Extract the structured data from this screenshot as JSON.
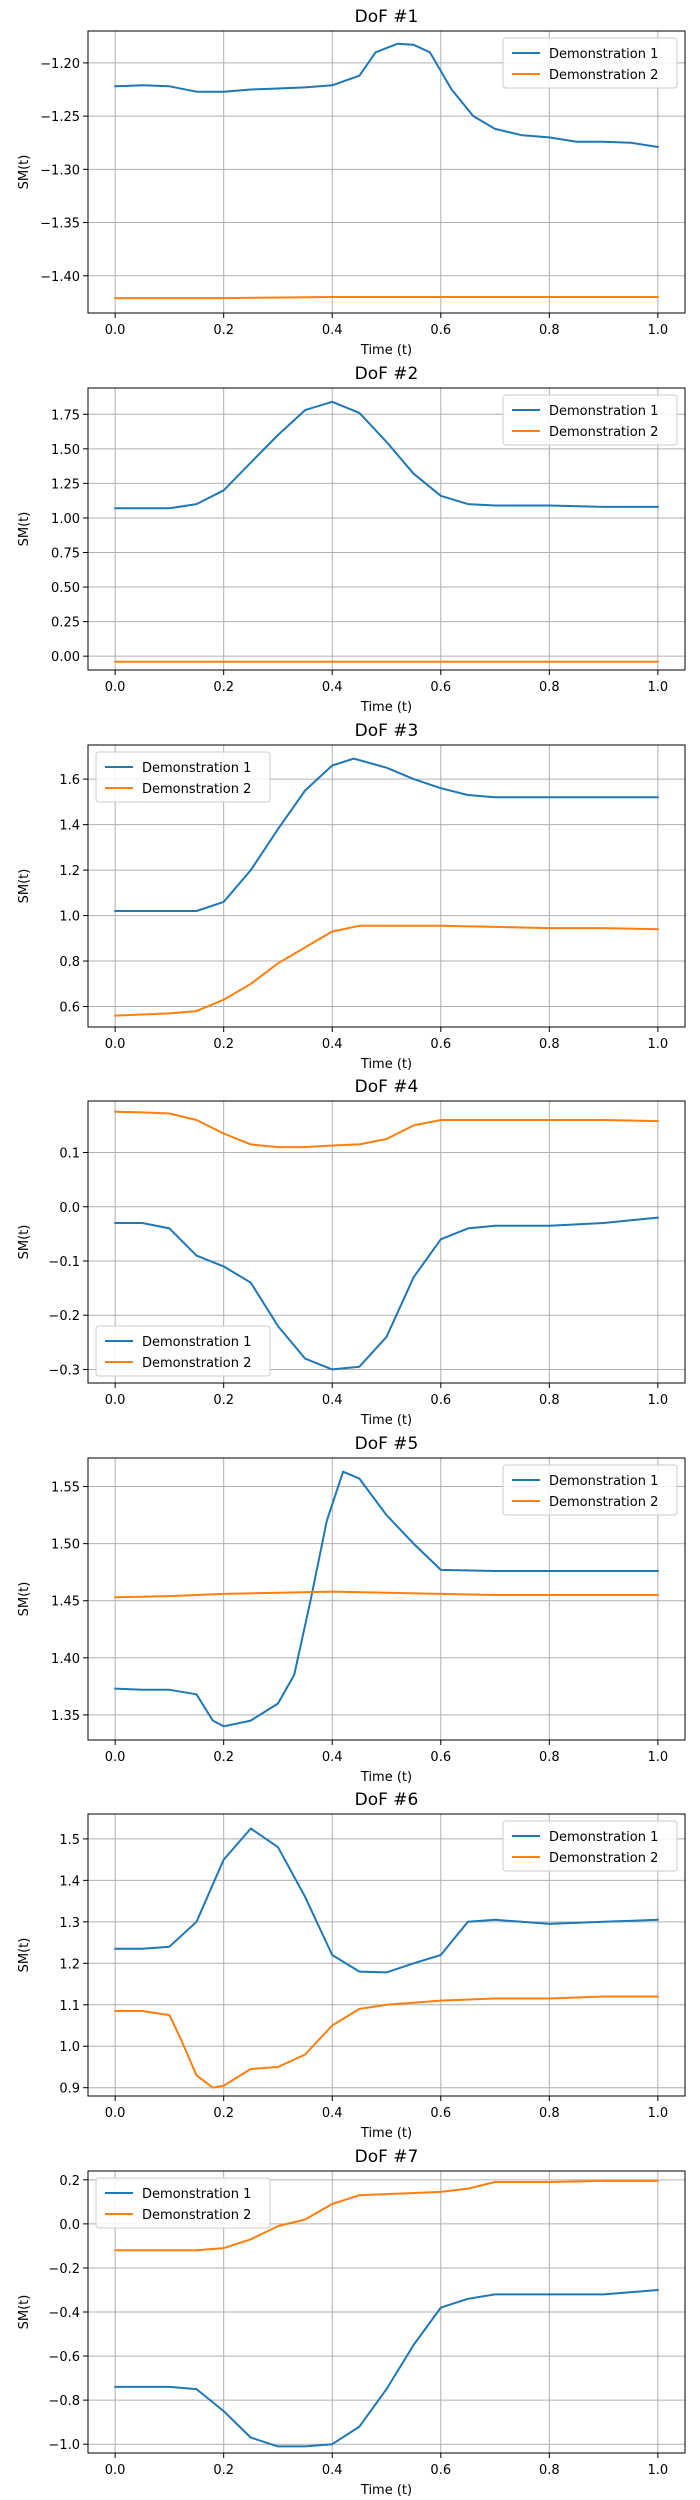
{
  "colors": {
    "series1": "#1f77b4",
    "series2": "#ff7f0e"
  },
  "chart_data": [
    {
      "type": "line",
      "title": "DoF #1",
      "xlabel": "Time (t)",
      "ylabel": "SM(t)",
      "xlim": [
        -0.05,
        1.05
      ],
      "ylim": [
        -1.435,
        -1.17
      ],
      "xticks": [
        0.0,
        0.2,
        0.4,
        0.6,
        0.8,
        1.0
      ],
      "xtick_labels": [
        "0.0",
        "0.2",
        "0.4",
        "0.6",
        "0.8",
        "1.0"
      ],
      "yticks": [
        -1.4,
        -1.35,
        -1.3,
        -1.25,
        -1.2
      ],
      "ytick_labels": [
        "−1.40",
        "−1.35",
        "−1.30",
        "−1.25",
        "−1.20"
      ],
      "grid": true,
      "legend": "top-right",
      "series": [
        {
          "name": "Demonstration 1",
          "x": [
            0,
            0.05,
            0.1,
            0.15,
            0.2,
            0.25,
            0.3,
            0.35,
            0.4,
            0.45,
            0.48,
            0.52,
            0.55,
            0.58,
            0.62,
            0.66,
            0.7,
            0.75,
            0.8,
            0.85,
            0.9,
            0.95,
            1.0
          ],
          "y": [
            -1.222,
            -1.221,
            -1.222,
            -1.227,
            -1.227,
            -1.225,
            -1.224,
            -1.223,
            -1.221,
            -1.212,
            -1.19,
            -1.182,
            -1.183,
            -1.19,
            -1.225,
            -1.25,
            -1.262,
            -1.268,
            -1.27,
            -1.274,
            -1.274,
            -1.275,
            -1.279
          ]
        },
        {
          "name": "Demonstration 2",
          "x": [
            0,
            0.2,
            0.4,
            0.6,
            0.8,
            1.0
          ],
          "y": [
            -1.421,
            -1.421,
            -1.42,
            -1.42,
            -1.42,
            -1.42
          ]
        }
      ]
    },
    {
      "type": "line",
      "title": "DoF #2",
      "xlabel": "Time (t)",
      "ylabel": "SM(t)",
      "xlim": [
        -0.05,
        1.05
      ],
      "ylim": [
        -0.1,
        1.94
      ],
      "xticks": [
        0.0,
        0.2,
        0.4,
        0.6,
        0.8,
        1.0
      ],
      "xtick_labels": [
        "0.0",
        "0.2",
        "0.4",
        "0.6",
        "0.8",
        "1.0"
      ],
      "yticks": [
        0.0,
        0.25,
        0.5,
        0.75,
        1.0,
        1.25,
        1.5,
        1.75
      ],
      "ytick_labels": [
        "0.00",
        "0.25",
        "0.50",
        "0.75",
        "1.00",
        "1.25",
        "1.50",
        "1.75"
      ],
      "grid": true,
      "legend": "top-right",
      "series": [
        {
          "name": "Demonstration 1",
          "x": [
            0,
            0.05,
            0.1,
            0.15,
            0.2,
            0.25,
            0.3,
            0.35,
            0.4,
            0.45,
            0.5,
            0.55,
            0.6,
            0.65,
            0.7,
            0.8,
            0.9,
            1.0
          ],
          "y": [
            1.07,
            1.07,
            1.07,
            1.1,
            1.2,
            1.4,
            1.6,
            1.78,
            1.84,
            1.76,
            1.55,
            1.32,
            1.16,
            1.1,
            1.09,
            1.09,
            1.08,
            1.08
          ]
        },
        {
          "name": "Demonstration 2",
          "x": [
            0,
            0.2,
            0.4,
            0.6,
            0.8,
            1.0
          ],
          "y": [
            -0.04,
            -0.04,
            -0.04,
            -0.04,
            -0.04,
            -0.04
          ]
        }
      ]
    },
    {
      "type": "line",
      "title": "DoF #3",
      "xlabel": "Time (t)",
      "ylabel": "SM(t)",
      "xlim": [
        -0.05,
        1.05
      ],
      "ylim": [
        0.51,
        1.75
      ],
      "xticks": [
        0.0,
        0.2,
        0.4,
        0.6,
        0.8,
        1.0
      ],
      "xtick_labels": [
        "0.0",
        "0.2",
        "0.4",
        "0.6",
        "0.8",
        "1.0"
      ],
      "yticks": [
        0.6,
        0.8,
        1.0,
        1.2,
        1.4,
        1.6
      ],
      "ytick_labels": [
        "0.6",
        "0.8",
        "1.0",
        "1.2",
        "1.4",
        "1.6"
      ],
      "grid": true,
      "legend": "top-left",
      "series": [
        {
          "name": "Demonstration 1",
          "x": [
            0,
            0.05,
            0.1,
            0.15,
            0.2,
            0.25,
            0.3,
            0.35,
            0.4,
            0.44,
            0.5,
            0.55,
            0.6,
            0.65,
            0.7,
            0.8,
            0.9,
            1.0
          ],
          "y": [
            1.02,
            1.02,
            1.02,
            1.02,
            1.06,
            1.2,
            1.38,
            1.55,
            1.66,
            1.69,
            1.65,
            1.6,
            1.56,
            1.53,
            1.52,
            1.52,
            1.52,
            1.52
          ]
        },
        {
          "name": "Demonstration 2",
          "x": [
            0,
            0.05,
            0.1,
            0.15,
            0.2,
            0.25,
            0.3,
            0.35,
            0.4,
            0.45,
            0.5,
            0.6,
            0.7,
            0.8,
            0.9,
            1.0
          ],
          "y": [
            0.56,
            0.565,
            0.57,
            0.58,
            0.63,
            0.7,
            0.79,
            0.86,
            0.93,
            0.955,
            0.955,
            0.955,
            0.95,
            0.945,
            0.945,
            0.94
          ]
        }
      ]
    },
    {
      "type": "line",
      "title": "DoF #4",
      "xlabel": "Time (t)",
      "ylabel": "SM(t)",
      "xlim": [
        -0.05,
        1.05
      ],
      "ylim": [
        -0.325,
        0.195
      ],
      "xticks": [
        0.0,
        0.2,
        0.4,
        0.6,
        0.8,
        1.0
      ],
      "xtick_labels": [
        "0.0",
        "0.2",
        "0.4",
        "0.6",
        "0.8",
        "1.0"
      ],
      "yticks": [
        -0.3,
        -0.2,
        -0.1,
        0.0,
        0.1
      ],
      "ytick_labels": [
        "−0.3",
        "−0.2",
        "−0.1",
        "0.0",
        "0.1"
      ],
      "grid": true,
      "legend": "bottom-left",
      "series": [
        {
          "name": "Demonstration 1",
          "x": [
            0,
            0.05,
            0.1,
            0.15,
            0.2,
            0.25,
            0.3,
            0.35,
            0.4,
            0.45,
            0.5,
            0.55,
            0.6,
            0.65,
            0.7,
            0.8,
            0.9,
            1.0
          ],
          "y": [
            -0.03,
            -0.03,
            -0.04,
            -0.09,
            -0.11,
            -0.14,
            -0.22,
            -0.28,
            -0.3,
            -0.295,
            -0.24,
            -0.13,
            -0.06,
            -0.04,
            -0.035,
            -0.035,
            -0.03,
            -0.02
          ]
        },
        {
          "name": "Demonstration 2",
          "x": [
            0,
            0.05,
            0.1,
            0.15,
            0.2,
            0.25,
            0.3,
            0.35,
            0.4,
            0.45,
            0.5,
            0.55,
            0.6,
            0.7,
            0.8,
            0.9,
            1.0
          ],
          "y": [
            0.175,
            0.174,
            0.172,
            0.16,
            0.135,
            0.115,
            0.11,
            0.11,
            0.113,
            0.115,
            0.125,
            0.15,
            0.16,
            0.16,
            0.16,
            0.16,
            0.158
          ]
        }
      ]
    },
    {
      "type": "line",
      "title": "DoF #5",
      "xlabel": "Time (t)",
      "ylabel": "SM(t)",
      "xlim": [
        -0.05,
        1.05
      ],
      "ylim": [
        1.328,
        1.575
      ],
      "xticks": [
        0.0,
        0.2,
        0.4,
        0.6,
        0.8,
        1.0
      ],
      "xtick_labels": [
        "0.0",
        "0.2",
        "0.4",
        "0.6",
        "0.8",
        "1.0"
      ],
      "yticks": [
        1.35,
        1.4,
        1.45,
        1.5,
        1.55
      ],
      "ytick_labels": [
        "1.35",
        "1.40",
        "1.45",
        "1.50",
        "1.55"
      ],
      "grid": true,
      "legend": "top-right",
      "series": [
        {
          "name": "Demonstration 1",
          "x": [
            0,
            0.05,
            0.1,
            0.15,
            0.18,
            0.2,
            0.25,
            0.3,
            0.33,
            0.36,
            0.39,
            0.42,
            0.45,
            0.5,
            0.55,
            0.6,
            0.7,
            0.8,
            0.9,
            1.0
          ],
          "y": [
            1.373,
            1.372,
            1.372,
            1.368,
            1.345,
            1.34,
            1.345,
            1.36,
            1.385,
            1.45,
            1.52,
            1.563,
            1.557,
            1.525,
            1.5,
            1.477,
            1.476,
            1.476,
            1.476,
            1.476
          ]
        },
        {
          "name": "Demonstration 2",
          "x": [
            0,
            0.1,
            0.2,
            0.3,
            0.4,
            0.5,
            0.6,
            0.7,
            0.8,
            0.9,
            1.0
          ],
          "y": [
            1.453,
            1.454,
            1.456,
            1.457,
            1.458,
            1.457,
            1.456,
            1.455,
            1.455,
            1.455,
            1.455
          ]
        }
      ]
    },
    {
      "type": "line",
      "title": "DoF #6",
      "xlabel": "Time (t)",
      "ylabel": "SM(t)",
      "xlim": [
        -0.05,
        1.05
      ],
      "ylim": [
        0.88,
        1.56
      ],
      "xticks": [
        0.0,
        0.2,
        0.4,
        0.6,
        0.8,
        1.0
      ],
      "xtick_labels": [
        "0.0",
        "0.2",
        "0.4",
        "0.6",
        "0.8",
        "1.0"
      ],
      "yticks": [
        0.9,
        1.0,
        1.1,
        1.2,
        1.3,
        1.4,
        1.5
      ],
      "ytick_labels": [
        "0.9",
        "1.0",
        "1.1",
        "1.2",
        "1.3",
        "1.4",
        "1.5"
      ],
      "grid": true,
      "legend": "top-right",
      "series": [
        {
          "name": "Demonstration 1",
          "x": [
            0,
            0.05,
            0.1,
            0.15,
            0.2,
            0.25,
            0.3,
            0.35,
            0.4,
            0.45,
            0.5,
            0.55,
            0.6,
            0.65,
            0.7,
            0.8,
            0.9,
            1.0
          ],
          "y": [
            1.235,
            1.235,
            1.24,
            1.3,
            1.45,
            1.525,
            1.48,
            1.36,
            1.22,
            1.18,
            1.178,
            1.2,
            1.22,
            1.3,
            1.305,
            1.295,
            1.3,
            1.305
          ]
        },
        {
          "name": "Demonstration 2",
          "x": [
            0,
            0.05,
            0.1,
            0.12,
            0.15,
            0.18,
            0.2,
            0.25,
            0.3,
            0.35,
            0.4,
            0.45,
            0.5,
            0.6,
            0.7,
            0.8,
            0.9,
            1.0
          ],
          "y": [
            1.085,
            1.085,
            1.075,
            1.02,
            0.93,
            0.9,
            0.905,
            0.945,
            0.95,
            0.98,
            1.05,
            1.09,
            1.1,
            1.11,
            1.115,
            1.115,
            1.12,
            1.12
          ]
        }
      ]
    },
    {
      "type": "line",
      "title": "DoF #7",
      "xlabel": "Time (t)",
      "ylabel": "SM(t)",
      "xlim": [
        -0.05,
        1.05
      ],
      "ylim": [
        -1.04,
        0.24
      ],
      "xticks": [
        0.0,
        0.2,
        0.4,
        0.6,
        0.8,
        1.0
      ],
      "xtick_labels": [
        "0.0",
        "0.2",
        "0.4",
        "0.6",
        "0.8",
        "1.0"
      ],
      "yticks": [
        -1.0,
        -0.8,
        -0.6,
        -0.4,
        -0.2,
        0.0,
        0.2
      ],
      "ytick_labels": [
        "−1.0",
        "−0.8",
        "−0.6",
        "−0.4",
        "−0.2",
        "0.0",
        "0.2"
      ],
      "grid": true,
      "legend": "top-left",
      "series": [
        {
          "name": "Demonstration 1",
          "x": [
            0,
            0.05,
            0.1,
            0.15,
            0.2,
            0.25,
            0.3,
            0.35,
            0.4,
            0.45,
            0.5,
            0.55,
            0.6,
            0.65,
            0.7,
            0.8,
            0.9,
            1.0
          ],
          "y": [
            -0.74,
            -0.74,
            -0.74,
            -0.75,
            -0.85,
            -0.97,
            -1.01,
            -1.01,
            -1.0,
            -0.92,
            -0.75,
            -0.55,
            -0.38,
            -0.34,
            -0.32,
            -0.32,
            -0.32,
            -0.3
          ]
        },
        {
          "name": "Demonstration 2",
          "x": [
            0,
            0.05,
            0.1,
            0.15,
            0.2,
            0.25,
            0.3,
            0.35,
            0.4,
            0.45,
            0.5,
            0.55,
            0.6,
            0.65,
            0.7,
            0.8,
            0.9,
            1.0
          ],
          "y": [
            -0.12,
            -0.12,
            -0.12,
            -0.12,
            -0.11,
            -0.07,
            -0.01,
            0.02,
            0.09,
            0.13,
            0.135,
            0.14,
            0.145,
            0.16,
            0.19,
            0.19,
            0.195,
            0.195
          ]
        }
      ]
    }
  ]
}
